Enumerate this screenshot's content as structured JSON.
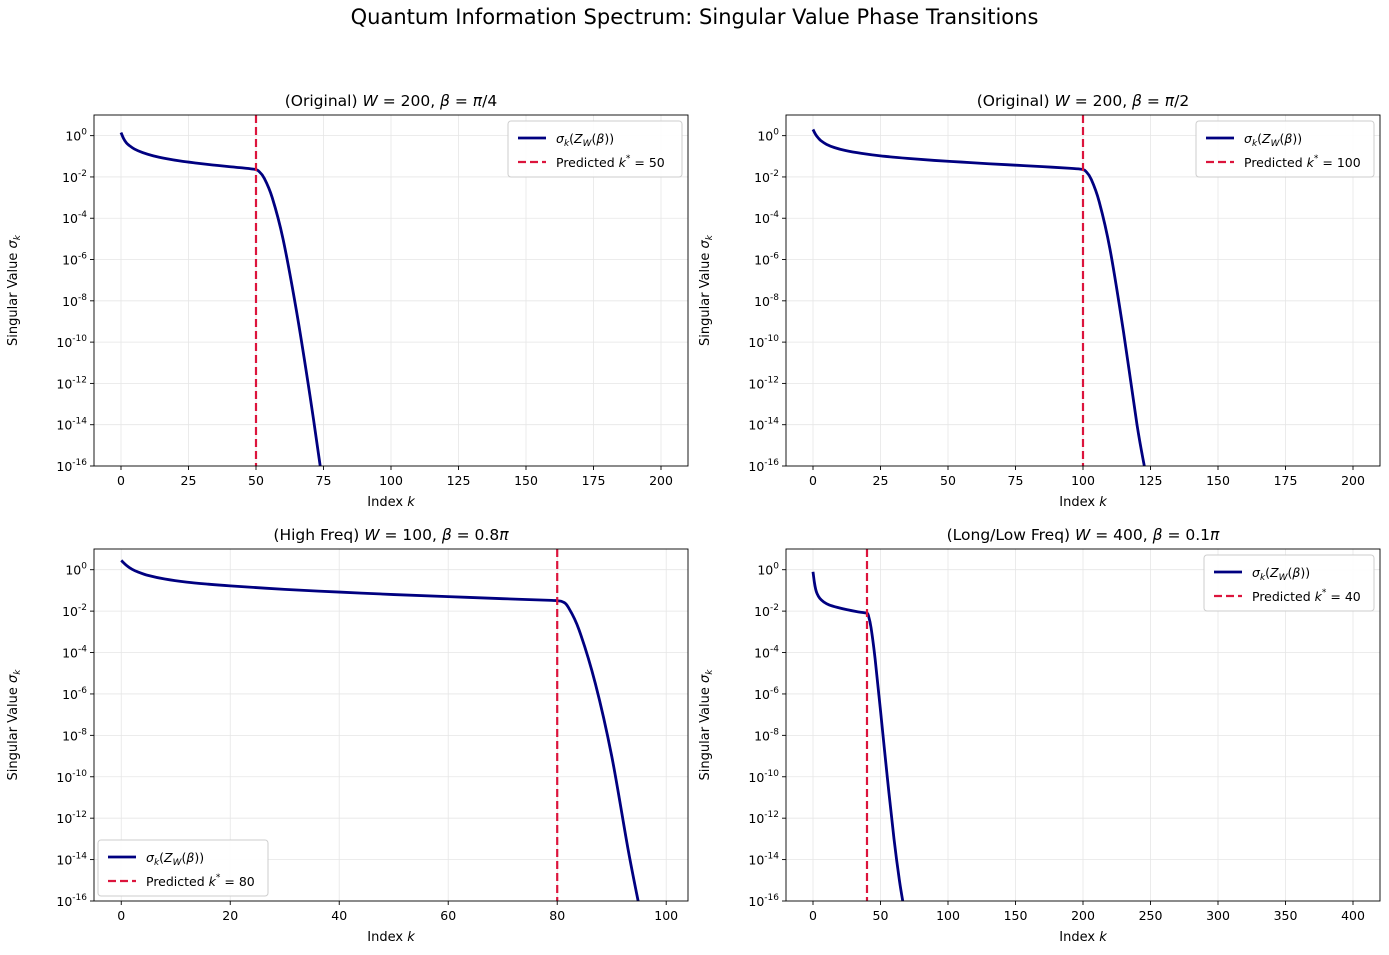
{
  "figure": {
    "title": "Quantum Information Spectrum: Singular Value Phase Transitions"
  },
  "colors": {
    "curve": "#000080",
    "predicted": "#dc143c",
    "grid": "#e6e6e6",
    "axis": "#000000"
  },
  "chart_data": [
    {
      "type": "line",
      "title": "(Original) W = 200, β = π/4",
      "title_parts": [
        "(Original) ",
        "W",
        " = 200, ",
        "β",
        " = ",
        "π",
        "/4"
      ],
      "xlabel": "Index k",
      "ylabel": "Singular Value σk",
      "xlim": [
        -10,
        210
      ],
      "xticks": [
        0,
        25,
        50,
        75,
        100,
        125,
        150,
        175,
        200
      ],
      "yscale": "log",
      "ylim_exp": [
        -16,
        1
      ],
      "ytick_exps": [
        0,
        -2,
        -4,
        -6,
        -8,
        -10,
        -12,
        -14,
        -16
      ],
      "grid": true,
      "legend_loc": "upper-right",
      "series": [
        {
          "name": "σk(ZW(β))",
          "kind": "curve",
          "x": [
            0,
            1,
            2,
            3,
            5,
            8,
            12,
            17,
            22,
            28,
            34,
            40,
            45,
            49,
            50,
            51,
            53,
            56,
            60,
            65,
            70,
            74
          ],
          "y_exp": [
            0.15,
            -0.15,
            -0.35,
            -0.47,
            -0.65,
            -0.82,
            -0.98,
            -1.12,
            -1.23,
            -1.33,
            -1.42,
            -1.5,
            -1.56,
            -1.62,
            -1.65,
            -1.72,
            -2.05,
            -3.0,
            -5.0,
            -8.5,
            -12.6,
            -16.2
          ]
        },
        {
          "name": "Predicted k* = 50",
          "kind": "vline",
          "x": 50
        }
      ],
      "legend": [
        {
          "base": "σ",
          "sub": "k",
          "mid": "(Z",
          "sub2": "W",
          "tail": "(β))"
        },
        {
          "text": "Predicted k",
          "sup": "*",
          "value": " = 50"
        }
      ]
    },
    {
      "type": "line",
      "title": "(Original) W = 200, β = π/2",
      "title_parts": [
        "(Original) ",
        "W",
        " = 200, ",
        "β",
        " = ",
        "π",
        "/2"
      ],
      "xlabel": "Index k",
      "ylabel": "Singular Value σk",
      "xlim": [
        -10,
        210
      ],
      "xticks": [
        0,
        25,
        50,
        75,
        100,
        125,
        150,
        175,
        200
      ],
      "yscale": "log",
      "ylim_exp": [
        -16,
        1
      ],
      "ytick_exps": [
        0,
        -2,
        -4,
        -6,
        -8,
        -10,
        -12,
        -14,
        -16
      ],
      "grid": true,
      "legend_loc": "upper-right",
      "series": [
        {
          "name": "σk(ZW(β))",
          "kind": "curve",
          "x": [
            0,
            1,
            2,
            3,
            5,
            8,
            12,
            18,
            25,
            35,
            45,
            55,
            65,
            75,
            85,
            95,
            99,
            100,
            101,
            103,
            106,
            110,
            115,
            120,
            123
          ],
          "y_exp": [
            0.3,
            0.05,
            -0.12,
            -0.25,
            -0.42,
            -0.58,
            -0.72,
            -0.86,
            -0.98,
            -1.1,
            -1.2,
            -1.28,
            -1.36,
            -1.43,
            -1.5,
            -1.58,
            -1.62,
            -1.65,
            -1.72,
            -2.1,
            -3.2,
            -5.5,
            -9.5,
            -14.0,
            -16.2
          ]
        },
        {
          "name": "Predicted k* = 100",
          "kind": "vline",
          "x": 100
        }
      ],
      "legend": [
        {
          "base": "σ",
          "sub": "k",
          "mid": "(Z",
          "sub2": "W",
          "tail": "(β))"
        },
        {
          "text": "Predicted k",
          "sup": "*",
          "value": " = 100"
        }
      ]
    },
    {
      "type": "line",
      "title": "(High Freq) W = 100, β = 0.8π",
      "title_parts": [
        "(High Freq) ",
        "W",
        " = 100, ",
        "β",
        " = 0.8",
        "π",
        ""
      ],
      "xlabel": "Index k",
      "ylabel": "Singular Value σk",
      "xlim": [
        -5,
        104
      ],
      "xticks": [
        0,
        20,
        40,
        60,
        80,
        100
      ],
      "yscale": "log",
      "ylim_exp": [
        -16,
        1
      ],
      "ytick_exps": [
        0,
        -2,
        -4,
        -6,
        -8,
        -10,
        -12,
        -14,
        -16
      ],
      "grid": true,
      "legend_loc": "lower-left",
      "series": [
        {
          "name": "σk(ZW(β))",
          "kind": "curve",
          "x": [
            0,
            1,
            2,
            3,
            5,
            8,
            12,
            16,
            20,
            30,
            40,
            50,
            60,
            70,
            79,
            80,
            81,
            82,
            84,
            87,
            90,
            93,
            95
          ],
          "y_exp": [
            0.45,
            0.2,
            0.02,
            -0.1,
            -0.28,
            -0.45,
            -0.6,
            -0.7,
            -0.78,
            -0.95,
            -1.08,
            -1.2,
            -1.3,
            -1.4,
            -1.48,
            -1.5,
            -1.55,
            -1.8,
            -2.9,
            -5.5,
            -9.0,
            -13.5,
            -16.2
          ]
        },
        {
          "name": "Predicted k* = 80",
          "kind": "vline",
          "x": 80
        }
      ],
      "legend": [
        {
          "base": "σ",
          "sub": "k",
          "mid": "(Z",
          "sub2": "W",
          "tail": "(β))"
        },
        {
          "text": "Predicted k",
          "sup": "*",
          "value": " = 80"
        }
      ]
    },
    {
      "type": "line",
      "title": "(Long/Low Freq) W = 400, β = 0.1π",
      "title_parts": [
        "(Long/Low Freq) ",
        "W",
        " = 400, ",
        "β",
        " = 0.1",
        "π",
        ""
      ],
      "xlabel": "Index k",
      "ylabel": "Singular Value σk",
      "xlim": [
        -20,
        420
      ],
      "xticks": [
        0,
        50,
        100,
        150,
        200,
        250,
        300,
        350,
        400
      ],
      "yscale": "log",
      "ylim_exp": [
        -16,
        1
      ],
      "ytick_exps": [
        0,
        -2,
        -4,
        -6,
        -8,
        -10,
        -12,
        -14,
        -16
      ],
      "grid": true,
      "legend_loc": "upper-right",
      "series": [
        {
          "name": "σk(ZW(β))",
          "kind": "curve",
          "x": [
            0,
            1,
            2,
            3,
            5,
            8,
            12,
            18,
            25,
            32,
            38,
            40,
            41,
            43,
            46,
            50,
            55,
            60,
            64,
            67
          ],
          "y_exp": [
            -0.1,
            -0.6,
            -0.95,
            -1.15,
            -1.38,
            -1.56,
            -1.7,
            -1.82,
            -1.93,
            -2.02,
            -2.08,
            -2.1,
            -2.2,
            -2.8,
            -4.3,
            -6.8,
            -10.0,
            -13.0,
            -15.0,
            -16.2
          ]
        },
        {
          "name": "Predicted k* = 40",
          "kind": "vline",
          "x": 40
        }
      ],
      "legend": [
        {
          "base": "σ",
          "sub": "k",
          "mid": "(Z",
          "sub2": "W",
          "tail": "(β))"
        },
        {
          "text": "Predicted k",
          "sup": "*",
          "value": " = 40"
        }
      ]
    }
  ]
}
